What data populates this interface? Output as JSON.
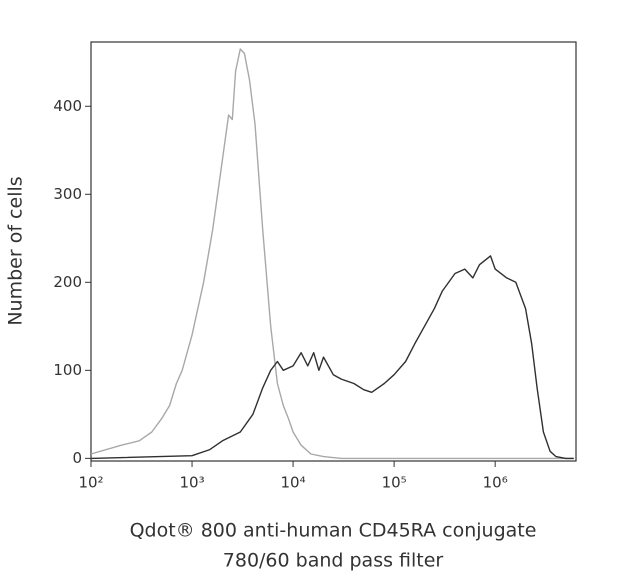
{
  "chart_data": {
    "type": "line",
    "x_label": [
      "Qdot® 800 anti-human CD45RA conjugate",
      "780/60 band pass filter"
    ],
    "y_label": "Number of cells",
    "xscale": "log",
    "xlim": [
      100,
      6309573
    ],
    "ylim": [
      -3,
      473
    ],
    "xticks": [
      {
        "value": 100,
        "label": "10²"
      },
      {
        "value": 1000,
        "label": "10³"
      },
      {
        "value": 10000,
        "label": "10⁴"
      },
      {
        "value": 100000,
        "label": "10⁵"
      },
      {
        "value": 1000000,
        "label": "10⁶"
      }
    ],
    "yticks": [
      0,
      100,
      200,
      300,
      400
    ],
    "series": [
      {
        "color": "#a8a8a8",
        "x": [
          100,
          200,
          300,
          400,
          500,
          600,
          700,
          800,
          1000,
          1300,
          1600,
          2000,
          2300,
          2500,
          2700,
          3000,
          3300,
          3700,
          4200,
          5000,
          6000,
          7000,
          8000,
          9000,
          10000,
          12000,
          15000,
          20000,
          30000,
          100000,
          1000000,
          6000000
        ],
        "values": [
          5,
          15,
          20,
          30,
          45,
          60,
          85,
          100,
          140,
          200,
          260,
          340,
          390,
          385,
          440,
          465,
          460,
          430,
          380,
          260,
          150,
          85,
          60,
          45,
          30,
          15,
          5,
          2,
          0,
          0,
          0,
          0
        ]
      },
      {
        "color": "#303030",
        "x": [
          100,
          1000,
          1500,
          2000,
          3000,
          4000,
          5000,
          6000,
          7000,
          8000,
          10000,
          12000,
          14000,
          16000,
          18000,
          20000,
          25000,
          30000,
          40000,
          50000,
          60000,
          80000,
          100000,
          130000,
          160000,
          200000,
          250000,
          300000,
          400000,
          500000,
          600000,
          700000,
          900000,
          1000000,
          1300000,
          1600000,
          2000000,
          2300000,
          2600000,
          3000000,
          3500000,
          4000000,
          5000000,
          6000000
        ],
        "values": [
          0,
          3,
          10,
          20,
          30,
          50,
          80,
          100,
          110,
          100,
          105,
          120,
          105,
          120,
          100,
          115,
          95,
          90,
          85,
          78,
          75,
          85,
          95,
          110,
          130,
          150,
          170,
          190,
          210,
          215,
          205,
          220,
          230,
          215,
          205,
          200,
          170,
          130,
          80,
          30,
          8,
          2,
          0,
          0
        ]
      }
    ]
  }
}
